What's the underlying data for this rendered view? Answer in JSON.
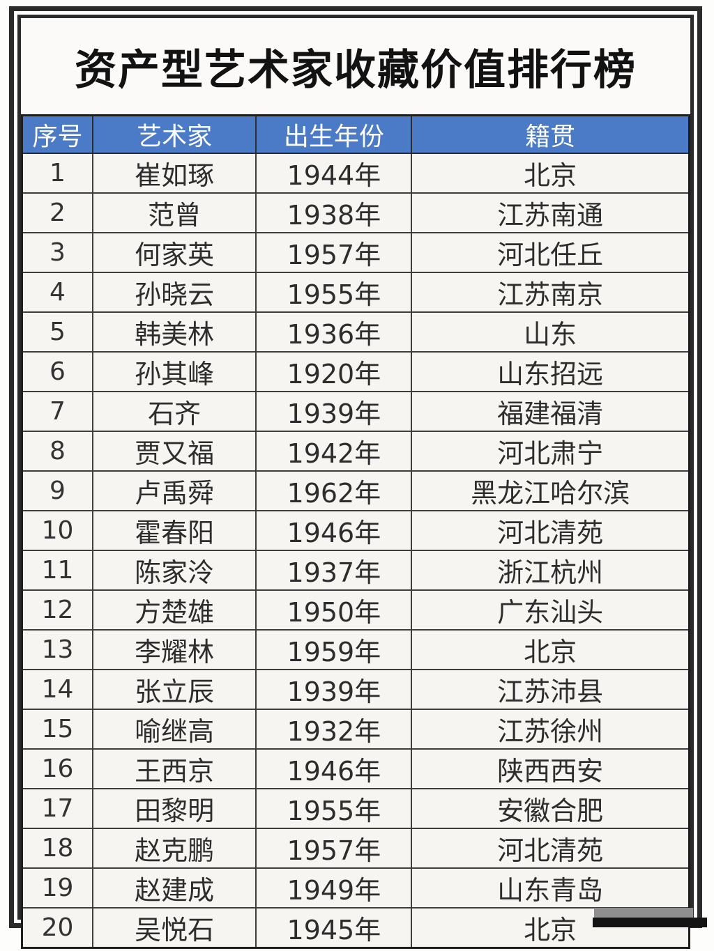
{
  "title": "资产型艺术家收藏价值排行榜",
  "table": {
    "headers": [
      "序号",
      "艺术家",
      "出生年份",
      "籍贯"
    ],
    "rows": [
      {
        "rank": "1",
        "artist": "崔如琢",
        "birth_year": "1944年",
        "origin": "北京"
      },
      {
        "rank": "2",
        "artist": "范曾",
        "birth_year": "1938年",
        "origin": "江苏南通"
      },
      {
        "rank": "3",
        "artist": "何家英",
        "birth_year": "1957年",
        "origin": "河北任丘"
      },
      {
        "rank": "4",
        "artist": "孙晓云",
        "birth_year": "1955年",
        "origin": "江苏南京"
      },
      {
        "rank": "5",
        "artist": "韩美林",
        "birth_year": "1936年",
        "origin": "山东"
      },
      {
        "rank": "6",
        "artist": "孙其峰",
        "birth_year": "1920年",
        "origin": "山东招远"
      },
      {
        "rank": "7",
        "artist": "石齐",
        "birth_year": "1939年",
        "origin": "福建福清"
      },
      {
        "rank": "8",
        "artist": "贾又福",
        "birth_year": "1942年",
        "origin": "河北肃宁"
      },
      {
        "rank": "9",
        "artist": "卢禹舜",
        "birth_year": "1962年",
        "origin": "黑龙江哈尔滨"
      },
      {
        "rank": "10",
        "artist": "霍春阳",
        "birth_year": "1946年",
        "origin": "河北清苑"
      },
      {
        "rank": "11",
        "artist": "陈家泠",
        "birth_year": "1937年",
        "origin": "浙江杭州"
      },
      {
        "rank": "12",
        "artist": "方楚雄",
        "birth_year": "1950年",
        "origin": "广东汕头"
      },
      {
        "rank": "13",
        "artist": "李耀林",
        "birth_year": "1959年",
        "origin": "北京"
      },
      {
        "rank": "14",
        "artist": "张立辰",
        "birth_year": "1939年",
        "origin": "江苏沛县"
      },
      {
        "rank": "15",
        "artist": "喻继高",
        "birth_year": "1932年",
        "origin": "江苏徐州"
      },
      {
        "rank": "16",
        "artist": "王西京",
        "birth_year": "1946年",
        "origin": "陕西西安"
      },
      {
        "rank": "17",
        "artist": "田黎明",
        "birth_year": "1955年",
        "origin": "安徽合肥"
      },
      {
        "rank": "18",
        "artist": "赵克鹏",
        "birth_year": "1957年",
        "origin": "河北清苑"
      },
      {
        "rank": "19",
        "artist": "赵建成",
        "birth_year": "1949年",
        "origin": "山东青岛"
      },
      {
        "rank": "20",
        "artist": "吴悦石",
        "birth_year": "1945年",
        "origin": "北京"
      }
    ]
  },
  "colors": {
    "header_bg": "#4b7ac6",
    "header_text": "#ffffff",
    "frame": "#2b2b2b",
    "row_bg": "#f6f5f2",
    "body_text": "#2d2d2d",
    "watermark_gray": "#8f8f8f"
  }
}
